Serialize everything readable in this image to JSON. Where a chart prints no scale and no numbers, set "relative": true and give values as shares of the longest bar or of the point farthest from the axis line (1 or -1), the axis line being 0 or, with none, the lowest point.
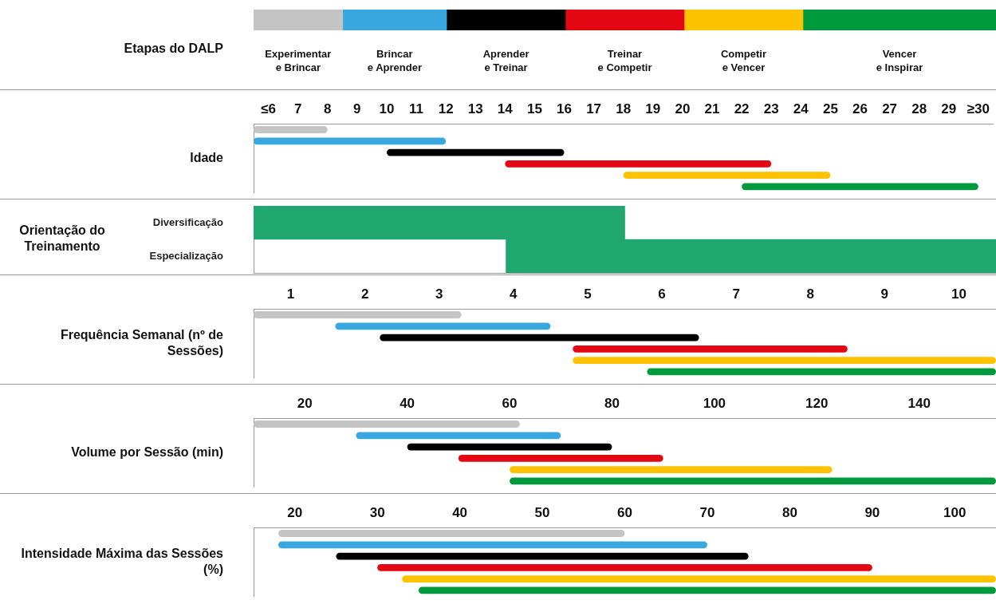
{
  "chart_data": [
    {
      "type": "bar",
      "orientation": "horizontal",
      "stacked": true,
      "relative": true,
      "ylabel": "Etapas do DALP",
      "categories": [
        null
      ],
      "series": [
        {
          "name": "Experimentar e Brincar",
          "color": "#c4c4c4",
          "values": [
            0.12
          ]
        },
        {
          "name": "Brincar e Aprender",
          "color": "#3aa8e0",
          "values": [
            0.14
          ]
        },
        {
          "name": "Aprender e Treinar",
          "color": "#000000",
          "values": [
            0.16
          ]
        },
        {
          "name": "Treinar e Competir",
          "color": "#e30613",
          "values": [
            0.16
          ]
        },
        {
          "name": "Competir e Vencer",
          "color": "#fdc300",
          "values": [
            0.16
          ]
        },
        {
          "name": "Vencer e Inspirar",
          "color": "#009a3e",
          "values": [
            0.26
          ]
        }
      ]
    },
    {
      "type": "bar",
      "orientation": "horizontal",
      "ylabel": "Idade",
      "categories": [
        null,
        null,
        null,
        null,
        null,
        null
      ],
      "base": [
        5.5,
        5.5,
        10,
        14,
        18,
        22
      ],
      "values": [
        2.5,
        6.5,
        6,
        9,
        7,
        8
      ],
      "colors": [
        "#c4c4c4",
        "#3aa8e0",
        "#000000",
        "#e30613",
        "#fdc300",
        "#009a3e"
      ],
      "xlim": [
        5.5,
        30.5
      ],
      "xticks": [
        {
          "value": 6,
          "label": "≤6"
        },
        7,
        8,
        9,
        10,
        11,
        12,
        13,
        14,
        15,
        16,
        17,
        18,
        19,
        20,
        21,
        22,
        23,
        24,
        25,
        26,
        27,
        28,
        29,
        {
          "value": 30,
          "label": "≥30"
        }
      ]
    },
    {
      "type": "bar",
      "orientation": "horizontal",
      "ylabel": "Orientação do Treinamento",
      "categories": [
        "Diversificação",
        "Especialização"
      ],
      "base": [
        5.5,
        14
      ],
      "values": [
        12.5,
        16.5
      ],
      "colors": [
        "#20a870",
        "#20a870"
      ],
      "xlim": [
        5.5,
        30.5
      ],
      "tick_labels": "y"
    },
    {
      "type": "bar",
      "orientation": "horizontal",
      "ylabel": "Frequência Semanal (nº de Sessões)",
      "categories": [
        null,
        null,
        null,
        null,
        null,
        null
      ],
      "base": [
        0.5,
        1.6,
        2.2,
        4.8,
        4.8,
        5.8
      ],
      "values": [
        2.8,
        2.9,
        4.3,
        3.7,
        5.7,
        4.7
      ],
      "colors": [
        "#c4c4c4",
        "#3aa8e0",
        "#000000",
        "#e30613",
        "#fdc300",
        "#009a3e"
      ],
      "xlim": [
        0.5,
        10.5
      ],
      "xticks": [
        1,
        2,
        3,
        4,
        5,
        6,
        7,
        8,
        9,
        10
      ]
    },
    {
      "type": "bar",
      "orientation": "horizontal",
      "ylabel": "Volume por Sessão (min)",
      "categories": [
        null,
        null,
        null,
        null,
        null,
        null
      ],
      "base": [
        10,
        30,
        40,
        50,
        60,
        60
      ],
      "values": [
        52,
        40,
        40,
        40,
        63,
        95
      ],
      "colors": [
        "#c4c4c4",
        "#3aa8e0",
        "#000000",
        "#e30613",
        "#fdc300",
        "#009a3e"
      ],
      "xlim": [
        10,
        155
      ],
      "xticks": [
        20,
        40,
        60,
        80,
        100,
        120,
        140
      ]
    },
    {
      "type": "bar",
      "orientation": "horizontal",
      "ylabel": "Intensidade Máxima das Sessões (%)",
      "categories": [
        null,
        null,
        null,
        null,
        null,
        null
      ],
      "base": [
        18,
        18,
        25,
        30,
        33,
        35
      ],
      "values": [
        42,
        52,
        50,
        60,
        72,
        70
      ],
      "colors": [
        "#c4c4c4",
        "#3aa8e0",
        "#000000",
        "#e30613",
        "#fdc300",
        "#009a3e"
      ],
      "xlim": [
        15,
        105
      ],
      "xticks": [
        20,
        30,
        40,
        50,
        60,
        70,
        80,
        90,
        100
      ]
    }
  ]
}
